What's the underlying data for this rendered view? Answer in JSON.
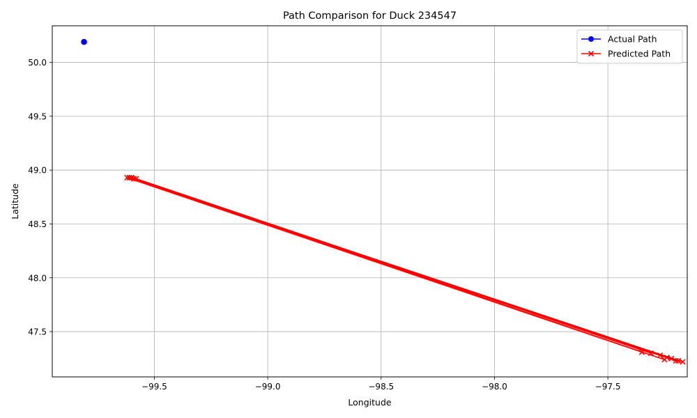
{
  "chart_data": {
    "type": "line",
    "title": "Path Comparison for Duck 234547",
    "xlabel": "Longitude",
    "ylabel": "Latitude",
    "xlim": [
      -99.95,
      -97.15
    ],
    "ylim": [
      47.08,
      50.34
    ],
    "xticks": [
      -99.5,
      -99.0,
      -98.5,
      -98.0,
      -97.5
    ],
    "xtick_labels": [
      "−99.5",
      "−99.0",
      "−98.5",
      "−98.0",
      "−97.5"
    ],
    "yticks": [
      47.5,
      48.0,
      48.5,
      49.0,
      49.5,
      50.0
    ],
    "ytick_labels": [
      "47.5",
      "48.0",
      "48.5",
      "49.0",
      "49.5",
      "50.0"
    ],
    "grid": true,
    "legend_position": "top-right",
    "series": [
      {
        "name": "Actual Path",
        "color": "#0000ff",
        "marker": "circle",
        "x": [
          -99.81,
          -99.81,
          -99.81
        ],
        "y": [
          50.19,
          50.19,
          50.19
        ]
      },
      {
        "name": "Predicted Path",
        "color": "#ff0000",
        "marker": "x",
        "x": [
          -99.62,
          -97.35,
          -99.6,
          -97.31,
          -99.58,
          -97.27,
          -99.61,
          -97.24,
          -99.59,
          -97.22,
          -99.6,
          -97.2,
          -99.61,
          -97.17,
          -99.59,
          -97.25,
          -99.6,
          -97.19
        ],
        "y": [
          48.93,
          47.31,
          48.93,
          47.3,
          48.92,
          47.28,
          48.93,
          47.26,
          48.92,
          47.25,
          48.93,
          47.23,
          48.93,
          47.22,
          48.92,
          47.24,
          48.93,
          47.23
        ]
      }
    ]
  }
}
